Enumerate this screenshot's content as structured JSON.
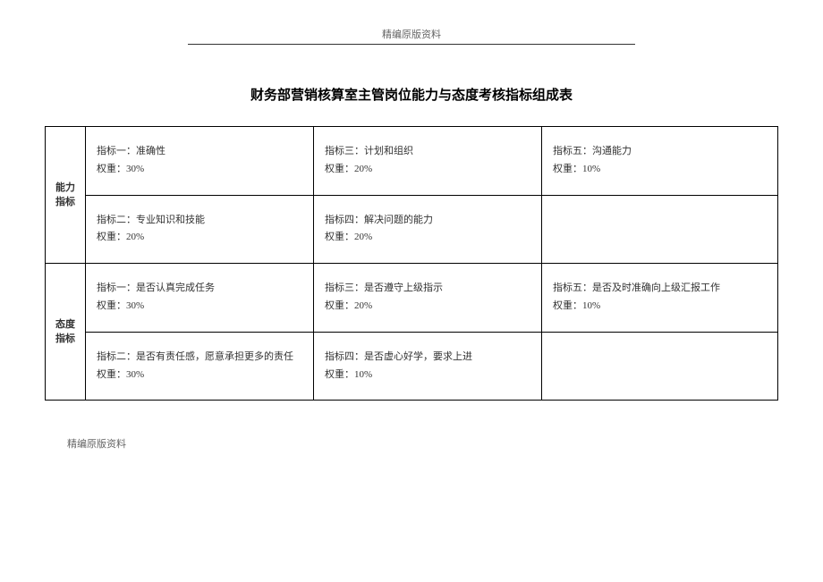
{
  "header": "精编原版资料",
  "title": "财务部营销核算室主管岗位能力与态度考核指标组成表",
  "footer": "精编原版资料",
  "sections": [
    {
      "category": "能力指标",
      "row1": {
        "c1_label": "指标一：准确性",
        "c1_weight": "权重：30%",
        "c2_label": "指标三：计划和组织",
        "c2_weight": "权重：20%",
        "c3_label": "指标五：沟通能力",
        "c3_weight": "权重：10%"
      },
      "row2": {
        "c1_label": "指标二：专业知识和技能",
        "c1_weight": "权重：20%",
        "c2_label": "指标四：解决问题的能力",
        "c2_weight": "权重：20%",
        "c3_label": "",
        "c3_weight": ""
      }
    },
    {
      "category": "态度指标",
      "row1": {
        "c1_label": "指标一：是否认真完成任务",
        "c1_weight": "权重：30%",
        "c2_label": "指标三：是否遵守上级指示",
        "c2_weight": "权重：20%",
        "c3_label": "指标五：是否及时准确向上级汇报工作",
        "c3_weight": "权重：10%"
      },
      "row2": {
        "c1_label": "指标二：是否有责任感，愿意承担更多的责任",
        "c1_weight": "权重：30%",
        "c2_label": "指标四：是否虚心好学，要求上进",
        "c2_weight": "权重：10%",
        "c3_label": "",
        "c3_weight": ""
      }
    }
  ]
}
